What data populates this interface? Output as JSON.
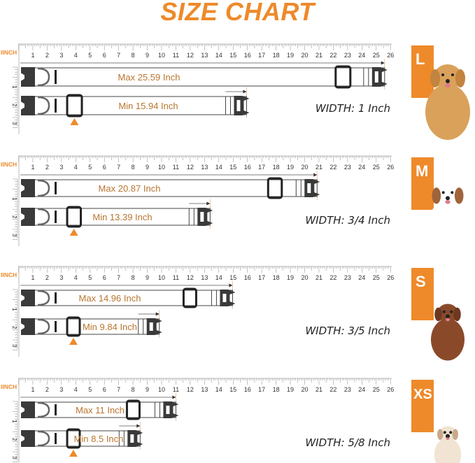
{
  "title": "SIZE CHART",
  "unit_label": "IINCH",
  "accent_color": "#EE8A2A",
  "label_color": "#B8752F",
  "ruler_ticks": [
    1,
    2,
    3,
    4,
    5,
    6,
    7,
    8,
    9,
    10,
    11,
    12,
    13,
    14,
    15,
    16,
    17,
    18,
    19,
    20,
    21,
    22,
    23,
    24,
    25,
    26
  ],
  "vertical_ticks": [
    1,
    2,
    3
  ],
  "sizes": [
    {
      "size": "L",
      "max_value": 25.59,
      "min_value": 15.94,
      "max_label": "Max 25.59 Inch",
      "min_label": "Min 15.94 Inch",
      "width_label": "WIDTH: 1 Inch",
      "dog": "golden-retriever"
    },
    {
      "size": "M",
      "max_value": 20.87,
      "min_value": 13.39,
      "max_label": "Max 20.87 Inch",
      "min_label": "Min 13.39 Inch",
      "width_label": "WIDTH: 3/4 Inch",
      "dog": "border-collie"
    },
    {
      "size": "S",
      "max_value": 14.96,
      "min_value": 9.84,
      "max_label": "Max 14.96 Inch",
      "min_label": "Min 9.84 Inch",
      "width_label": "WIDTH: 3/5 Inch",
      "dog": "poodle"
    },
    {
      "size": "XS",
      "max_value": 11,
      "min_value": 8.5,
      "max_label": "Max 11 Inch",
      "min_label": "Min 8.5 Inch",
      "width_label": "WIDTH: 5/8 Inch",
      "dog": "chihuahua"
    }
  ]
}
